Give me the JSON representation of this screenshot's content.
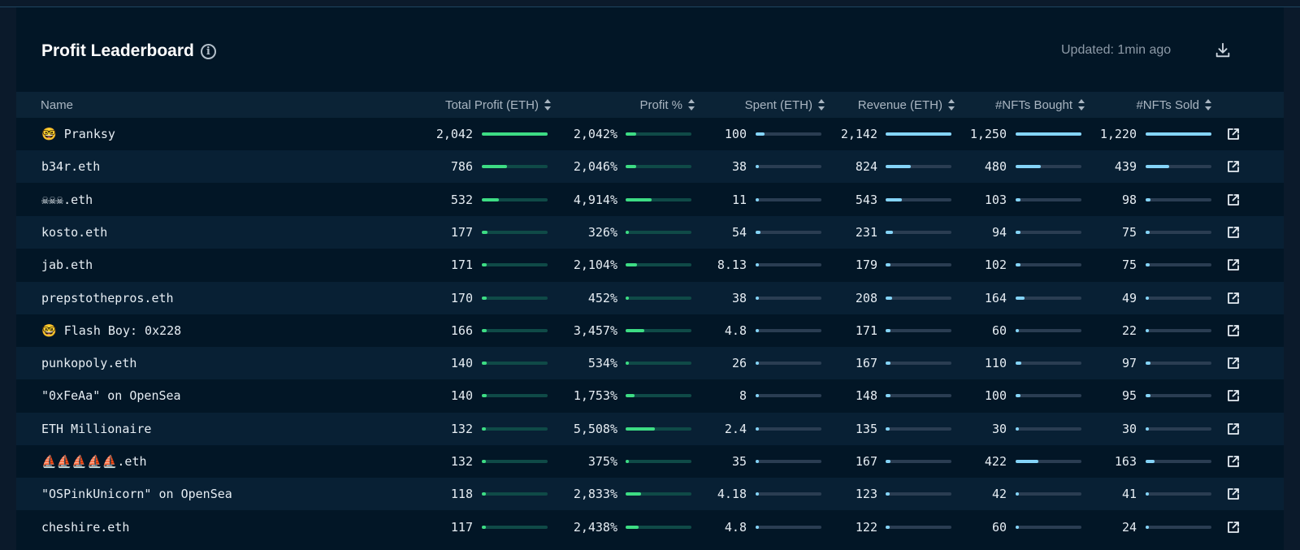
{
  "header": {
    "title": "Profit Leaderboard",
    "info_glyph": "i",
    "updated": "Updated: 1min ago"
  },
  "columns": {
    "name": "Name",
    "total_profit": "Total Profit (ETH)",
    "profit_pct": "Profit %",
    "spent": "Spent (ETH)",
    "revenue": "Revenue (ETH)",
    "bought": "#NFTs Bought",
    "sold": "#NFTs Sold"
  },
  "colors": {
    "green": "#3ddc84",
    "blue": "#84d4f8",
    "background": "#021626"
  },
  "icons": {
    "info": "info-icon",
    "download": "download-icon",
    "sort": "sort-icon",
    "external": "external-link-icon"
  },
  "rows": [
    {
      "name": "🤓 Pranksy",
      "profit": "2,042",
      "pct": "2,042%",
      "spent": "100",
      "revenue": "2,142",
      "bought": "1,250",
      "sold": "1,220",
      "profit_frac": 1.0,
      "pct_frac": 0.16,
      "spent_frac": 0.13,
      "revenue_frac": 1.0,
      "bought_frac": 1.0,
      "sold_frac": 1.0
    },
    {
      "name": "b34r.eth",
      "profit": "786",
      "pct": "2,046%",
      "spent": "38",
      "revenue": "824",
      "bought": "480",
      "sold": "439",
      "profit_frac": 0.38,
      "pct_frac": 0.16,
      "spent_frac": 0.04,
      "revenue_frac": 0.38,
      "bought_frac": 0.38,
      "sold_frac": 0.36
    },
    {
      "name": "☠☠☠.eth",
      "profit": "532",
      "pct": "4,914%",
      "spent": "11",
      "revenue": "543",
      "bought": "103",
      "sold": "98",
      "profit_frac": 0.26,
      "pct_frac": 0.39,
      "spent_frac": 0.01,
      "revenue_frac": 0.25,
      "bought_frac": 0.08,
      "sold_frac": 0.08
    },
    {
      "name": "kosto.eth",
      "profit": "177",
      "pct": "326%",
      "spent": "54",
      "revenue": "231",
      "bought": "94",
      "sold": "75",
      "profit_frac": 0.09,
      "pct_frac": 0.03,
      "spent_frac": 0.07,
      "revenue_frac": 0.11,
      "bought_frac": 0.07,
      "sold_frac": 0.06
    },
    {
      "name": "jab.eth",
      "profit": "171",
      "pct": "2,104%",
      "spent": "8.13",
      "revenue": "179",
      "bought": "102",
      "sold": "75",
      "profit_frac": 0.08,
      "pct_frac": 0.17,
      "spent_frac": 0.01,
      "revenue_frac": 0.08,
      "bought_frac": 0.08,
      "sold_frac": 0.06
    },
    {
      "name": "prepstothepros.eth",
      "profit": "170",
      "pct": "452%",
      "spent": "38",
      "revenue": "208",
      "bought": "164",
      "sold": "49",
      "profit_frac": 0.08,
      "pct_frac": 0.04,
      "spent_frac": 0.04,
      "revenue_frac": 0.1,
      "bought_frac": 0.13,
      "sold_frac": 0.04
    },
    {
      "name": "🤓 Flash Boy: 0x228",
      "profit": "166",
      "pct": "3,457%",
      "spent": "4.8",
      "revenue": "171",
      "bought": "60",
      "sold": "22",
      "profit_frac": 0.08,
      "pct_frac": 0.28,
      "spent_frac": 0.01,
      "revenue_frac": 0.08,
      "bought_frac": 0.05,
      "sold_frac": 0.02
    },
    {
      "name": "punkopoly.eth",
      "profit": "140",
      "pct": "534%",
      "spent": "26",
      "revenue": "167",
      "bought": "110",
      "sold": "97",
      "profit_frac": 0.07,
      "pct_frac": 0.04,
      "spent_frac": 0.03,
      "revenue_frac": 0.08,
      "bought_frac": 0.09,
      "sold_frac": 0.08
    },
    {
      "name": "\"0xFeAa\" on OpenSea",
      "profit": "140",
      "pct": "1,753%",
      "spent": "8",
      "revenue": "148",
      "bought": "100",
      "sold": "95",
      "profit_frac": 0.07,
      "pct_frac": 0.14,
      "spent_frac": 0.01,
      "revenue_frac": 0.07,
      "bought_frac": 0.08,
      "sold_frac": 0.08
    },
    {
      "name": "ETH Millionaire",
      "profit": "132",
      "pct": "5,508%",
      "spent": "2.4",
      "revenue": "135",
      "bought": "30",
      "sold": "30",
      "profit_frac": 0.06,
      "pct_frac": 0.44,
      "spent_frac": 0.01,
      "revenue_frac": 0.06,
      "bought_frac": 0.02,
      "sold_frac": 0.02
    },
    {
      "name": "⛵⛵⛵⛵⛵.eth",
      "profit": "132",
      "pct": "375%",
      "spent": "35",
      "revenue": "167",
      "bought": "422",
      "sold": "163",
      "profit_frac": 0.06,
      "pct_frac": 0.03,
      "spent_frac": 0.04,
      "revenue_frac": 0.08,
      "bought_frac": 0.34,
      "sold_frac": 0.13
    },
    {
      "name": "\"OSPinkUnicorn\" on OpenSea",
      "profit": "118",
      "pct": "2,833%",
      "spent": "4.18",
      "revenue": "123",
      "bought": "42",
      "sold": "41",
      "profit_frac": 0.06,
      "pct_frac": 0.23,
      "spent_frac": 0.01,
      "revenue_frac": 0.06,
      "bought_frac": 0.03,
      "sold_frac": 0.03
    },
    {
      "name": "cheshire.eth",
      "profit": "117",
      "pct": "2,438%",
      "spent": "4.8",
      "revenue": "122",
      "bought": "60",
      "sold": "24",
      "profit_frac": 0.06,
      "pct_frac": 0.2,
      "spent_frac": 0.01,
      "revenue_frac": 0.06,
      "bought_frac": 0.05,
      "sold_frac": 0.02
    }
  ]
}
